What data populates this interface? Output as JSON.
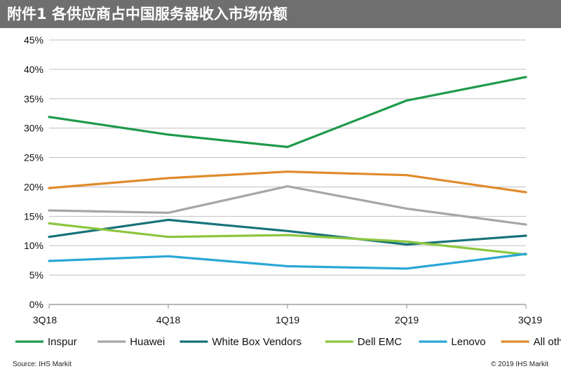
{
  "title": "附件1 各供应商占中国服务器收入市场份额",
  "source": "Source:  IHS Markit",
  "copyright": "© 2019 IHS Markit",
  "chart_data": {
    "type": "line",
    "categories": [
      "3Q18",
      "4Q18",
      "1Q19",
      "2Q19",
      "3Q19"
    ],
    "ylim": [
      0,
      45
    ],
    "yticks": [
      0,
      5,
      10,
      15,
      20,
      25,
      30,
      35,
      40,
      45
    ],
    "ytick_labels": [
      "0%",
      "5%",
      "10%",
      "15%",
      "20%",
      "25%",
      "30%",
      "35%",
      "40%",
      "45%"
    ],
    "grid": true,
    "legend_position": "bottom",
    "series": [
      {
        "name": "Inspur",
        "color": "#1e9a4a",
        "values": [
          31.9,
          28.9,
          26.8,
          34.7,
          38.7
        ]
      },
      {
        "name": "Huawei",
        "color": "#a6a6a6",
        "values": [
          16.0,
          15.6,
          20.1,
          16.3,
          13.6
        ]
      },
      {
        "name": "White Box Vendors",
        "color": "#17727a",
        "values": [
          11.5,
          14.4,
          12.5,
          10.2,
          11.7
        ]
      },
      {
        "name": "Dell EMC",
        "color": "#8cc63f",
        "values": [
          13.8,
          11.5,
          11.8,
          10.7,
          8.5
        ]
      },
      {
        "name": "Lenovo",
        "color": "#2aa7d6",
        "values": [
          7.4,
          8.2,
          6.5,
          6.1,
          8.6
        ]
      },
      {
        "name": "All others",
        "color": "#e08b2c",
        "values": [
          19.8,
          21.5,
          22.6,
          22.0,
          19.1
        ]
      }
    ]
  }
}
